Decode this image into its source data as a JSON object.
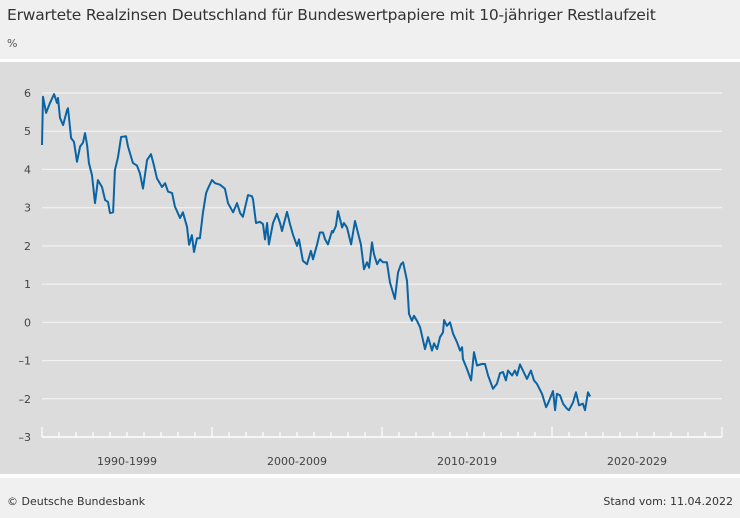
{
  "header": {
    "title": "Erwartete Realzinsen Deutschland für Bundeswertpapiere mit 10-jähriger Restlaufzeit",
    "unit": "%"
  },
  "footer": {
    "copyright": "© Deutsche Bundesbank",
    "stand": "Stand vom: 11.04.2022"
  },
  "chart_data": {
    "type": "line",
    "title": "Erwartete Realzinsen Deutschland für Bundeswertpapiere mit 10-jähriger Restlaufzeit",
    "ylabel": "%",
    "xlim": [
      1990,
      2030
    ],
    "ylim": [
      -3,
      6
    ],
    "yticks": [
      6,
      5,
      4,
      3,
      2,
      1,
      0,
      -1,
      -2,
      -3
    ],
    "ytick_labels": [
      "6",
      "5",
      "4",
      "3",
      "2",
      "1",
      "0",
      "–1",
      "–2",
      "–3"
    ],
    "xcategories": [
      "1990-1999",
      "2000-2009",
      "2010-2019",
      "2020-2029"
    ],
    "grid": "horizontal",
    "line_color": "#0a64a4",
    "background_color": "#dcdcdc",
    "series": [
      {
        "points": [
          [
            1990.0,
            4.64
          ],
          [
            1990.06,
            5.9
          ],
          [
            1990.24,
            5.48
          ],
          [
            1990.47,
            5.74
          ],
          [
            1990.71,
            5.97
          ],
          [
            1990.88,
            5.74
          ],
          [
            1990.94,
            5.87
          ],
          [
            1991.06,
            5.35
          ],
          [
            1991.24,
            5.16
          ],
          [
            1991.47,
            5.55
          ],
          [
            1991.53,
            5.6
          ],
          [
            1991.71,
            4.82
          ],
          [
            1991.88,
            4.72
          ],
          [
            1992.06,
            4.2
          ],
          [
            1992.24,
            4.6
          ],
          [
            1992.41,
            4.7
          ],
          [
            1992.53,
            4.95
          ],
          [
            1992.65,
            4.64
          ],
          [
            1992.76,
            4.17
          ],
          [
            1992.94,
            3.85
          ],
          [
            1993.12,
            3.12
          ],
          [
            1993.29,
            3.72
          ],
          [
            1993.53,
            3.54
          ],
          [
            1993.71,
            3.2
          ],
          [
            1993.88,
            3.15
          ],
          [
            1994.0,
            2.86
          ],
          [
            1994.18,
            2.88
          ],
          [
            1994.29,
            3.98
          ],
          [
            1994.47,
            4.32
          ],
          [
            1994.65,
            4.85
          ],
          [
            1994.94,
            4.87
          ],
          [
            1995.06,
            4.6
          ],
          [
            1995.35,
            4.17
          ],
          [
            1995.59,
            4.1
          ],
          [
            1995.76,
            3.9
          ],
          [
            1995.94,
            3.5
          ],
          [
            1996.18,
            4.25
          ],
          [
            1996.41,
            4.4
          ],
          [
            1996.59,
            4.1
          ],
          [
            1996.76,
            3.77
          ],
          [
            1997.06,
            3.54
          ],
          [
            1997.24,
            3.64
          ],
          [
            1997.41,
            3.42
          ],
          [
            1997.65,
            3.38
          ],
          [
            1997.82,
            3.03
          ],
          [
            1998.12,
            2.73
          ],
          [
            1998.29,
            2.88
          ],
          [
            1998.53,
            2.5
          ],
          [
            1998.65,
            2.03
          ],
          [
            1998.82,
            2.28
          ],
          [
            1998.94,
            1.84
          ],
          [
            1999.12,
            2.2
          ],
          [
            1999.29,
            2.2
          ],
          [
            1999.47,
            2.88
          ],
          [
            1999.65,
            3.38
          ],
          [
            1999.76,
            3.5
          ],
          [
            2000.0,
            3.72
          ],
          [
            2000.18,
            3.64
          ],
          [
            2000.47,
            3.6
          ],
          [
            2000.76,
            3.5
          ],
          [
            2000.94,
            3.12
          ],
          [
            2001.24,
            2.88
          ],
          [
            2001.47,
            3.12
          ],
          [
            2001.65,
            2.86
          ],
          [
            2001.82,
            2.76
          ],
          [
            2002.12,
            3.33
          ],
          [
            2002.35,
            3.3
          ],
          [
            2002.41,
            3.22
          ],
          [
            2002.59,
            2.6
          ],
          [
            2002.82,
            2.63
          ],
          [
            2003.0,
            2.57
          ],
          [
            2003.12,
            2.17
          ],
          [
            2003.24,
            2.6
          ],
          [
            2003.35,
            2.04
          ],
          [
            2003.59,
            2.6
          ],
          [
            2003.82,
            2.84
          ],
          [
            2004.0,
            2.6
          ],
          [
            2004.12,
            2.39
          ],
          [
            2004.41,
            2.89
          ],
          [
            2004.59,
            2.57
          ],
          [
            2004.76,
            2.3
          ],
          [
            2005.0,
            2.0
          ],
          [
            2005.12,
            2.17
          ],
          [
            2005.35,
            1.61
          ],
          [
            2005.59,
            1.52
          ],
          [
            2005.82,
            1.87
          ],
          [
            2005.94,
            1.65
          ],
          [
            2006.18,
            2.04
          ],
          [
            2006.35,
            2.35
          ],
          [
            2006.53,
            2.35
          ],
          [
            2006.65,
            2.17
          ],
          [
            2006.82,
            2.04
          ],
          [
            2007.06,
            2.39
          ],
          [
            2007.12,
            2.35
          ],
          [
            2007.29,
            2.52
          ],
          [
            2007.41,
            2.91
          ],
          [
            2007.65,
            2.48
          ],
          [
            2007.76,
            2.6
          ],
          [
            2007.94,
            2.48
          ],
          [
            2008.18,
            2.04
          ],
          [
            2008.41,
            2.65
          ],
          [
            2008.76,
            2.04
          ],
          [
            2008.94,
            1.39
          ],
          [
            2009.12,
            1.57
          ],
          [
            2009.24,
            1.43
          ],
          [
            2009.41,
            2.09
          ],
          [
            2009.53,
            1.78
          ],
          [
            2009.71,
            1.52
          ],
          [
            2009.88,
            1.65
          ],
          [
            2010.06,
            1.57
          ],
          [
            2010.29,
            1.57
          ],
          [
            2010.47,
            1.04
          ],
          [
            2010.76,
            0.61
          ],
          [
            2010.94,
            1.3
          ],
          [
            2011.12,
            1.52
          ],
          [
            2011.24,
            1.57
          ],
          [
            2011.47,
            1.09
          ],
          [
            2011.59,
            0.22
          ],
          [
            2011.76,
            0.04
          ],
          [
            2011.88,
            0.17
          ],
          [
            2012.06,
            0.04
          ],
          [
            2012.24,
            -0.13
          ],
          [
            2012.53,
            -0.7
          ],
          [
            2012.71,
            -0.39
          ],
          [
            2012.94,
            -0.74
          ],
          [
            2013.06,
            -0.55
          ],
          [
            2013.24,
            -0.7
          ],
          [
            2013.41,
            -0.39
          ],
          [
            2013.59,
            -0.26
          ],
          [
            2013.65,
            0.06
          ],
          [
            2013.82,
            -0.09
          ],
          [
            2014.0,
            0.0
          ],
          [
            2014.18,
            -0.3
          ],
          [
            2014.41,
            -0.52
          ],
          [
            2014.59,
            -0.74
          ],
          [
            2014.71,
            -0.65
          ],
          [
            2014.76,
            -0.96
          ],
          [
            2015.0,
            -1.22
          ],
          [
            2015.24,
            -1.52
          ],
          [
            2015.41,
            -0.78
          ],
          [
            2015.59,
            -1.13
          ],
          [
            2015.88,
            -1.09
          ],
          [
            2016.06,
            -1.09
          ],
          [
            2016.24,
            -1.39
          ],
          [
            2016.53,
            -1.74
          ],
          [
            2016.76,
            -1.61
          ],
          [
            2016.94,
            -1.33
          ],
          [
            2017.12,
            -1.3
          ],
          [
            2017.29,
            -1.52
          ],
          [
            2017.41,
            -1.26
          ],
          [
            2017.65,
            -1.39
          ],
          [
            2017.82,
            -1.26
          ],
          [
            2017.94,
            -1.39
          ],
          [
            2018.12,
            -1.1
          ],
          [
            2018.29,
            -1.26
          ],
          [
            2018.53,
            -1.48
          ],
          [
            2018.76,
            -1.26
          ],
          [
            2018.94,
            -1.52
          ],
          [
            2019.12,
            -1.61
          ],
          [
            2019.41,
            -1.87
          ],
          [
            2019.53,
            -2.04
          ],
          [
            2019.65,
            -2.22
          ],
          [
            2019.76,
            -2.13
          ],
          [
            2020.06,
            -1.8
          ],
          [
            2020.18,
            -2.3
          ],
          [
            2020.29,
            -1.87
          ],
          [
            2020.47,
            -1.91
          ],
          [
            2020.65,
            -2.13
          ],
          [
            2020.88,
            -2.26
          ],
          [
            2021.0,
            -2.3
          ],
          [
            2021.24,
            -2.09
          ],
          [
            2021.41,
            -1.83
          ],
          [
            2021.59,
            -2.17
          ],
          [
            2021.82,
            -2.13
          ],
          [
            2021.94,
            -2.3
          ],
          [
            2022.12,
            -1.83
          ],
          [
            2022.24,
            -1.94
          ]
        ]
      }
    ]
  }
}
